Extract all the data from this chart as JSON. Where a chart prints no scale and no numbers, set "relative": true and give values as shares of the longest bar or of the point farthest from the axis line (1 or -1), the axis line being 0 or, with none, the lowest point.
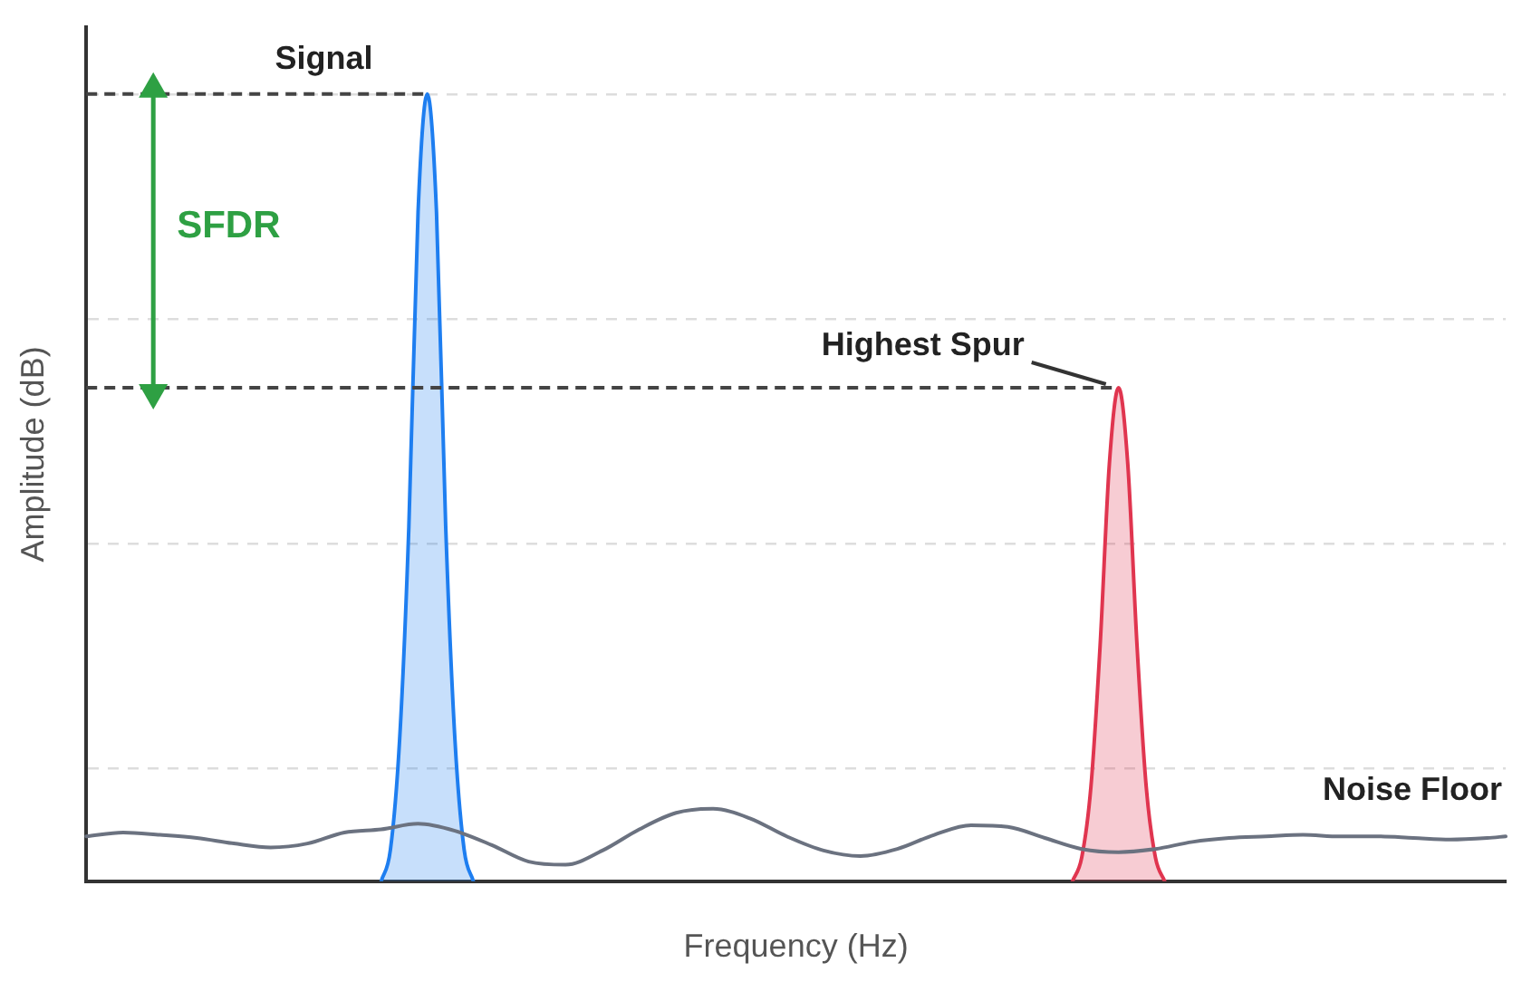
{
  "chart_data": {
    "type": "area",
    "relative": true,
    "xlabel": "Frequency (Hz)",
    "ylabel": "Amplitude (dB)",
    "grid": "y",
    "legend": false,
    "tick_labels": false,
    "categories": [
      null,
      null,
      null,
      null,
      null,
      null,
      null,
      null,
      null,
      null,
      null,
      null,
      null,
      null,
      null,
      null,
      null,
      null,
      null,
      null,
      null,
      null,
      null,
      null,
      null,
      null,
      null,
      null,
      null,
      null,
      null,
      null,
      null,
      null,
      null,
      null,
      null,
      null,
      null,
      null,
      null,
      null,
      null,
      null,
      null,
      null,
      null,
      null,
      null,
      null,
      null,
      null,
      null,
      null,
      null,
      null,
      null,
      null,
      null,
      null,
      null,
      null,
      null,
      null,
      null,
      null,
      null,
      null,
      null,
      null,
      null,
      null,
      null,
      null,
      null,
      null,
      null,
      null,
      null,
      null,
      null,
      null,
      null,
      null,
      null,
      null,
      null,
      null,
      null,
      null,
      null,
      null,
      null,
      null,
      null,
      null,
      null,
      null,
      null,
      null,
      null,
      null,
      null,
      null,
      null,
      null,
      null,
      null,
      null,
      null,
      null,
      null,
      null,
      null,
      null,
      null,
      null,
      null,
      null,
      null,
      null,
      null,
      null,
      null,
      null,
      null,
      null,
      null,
      null,
      null,
      null,
      null,
      null,
      null,
      null,
      null,
      null,
      null,
      null,
      null,
      null,
      null,
      null,
      null,
      null,
      null,
      null,
      null,
      null,
      null,
      null,
      null,
      null,
      null,
      null
    ],
    "series": [
      {
        "name": "Noise Floor",
        "type": "line",
        "color": "#6b7280",
        "values": [
          0.057,
          null,
          null,
          null,
          0.062,
          null,
          null,
          null,
          0.059,
          null,
          null,
          null,
          0.055,
          null,
          null,
          null,
          0.048,
          null,
          null,
          null,
          0.043,
          null,
          null,
          null,
          0.048,
          null,
          null,
          null,
          0.062,
          null,
          null,
          null,
          0.066,
          null,
          null,
          null,
          0.073,
          null,
          null,
          null,
          0.064,
          null,
          null,
          null,
          0.046,
          null,
          null,
          null,
          0.025,
          null,
          null,
          null,
          0.021,
          null,
          null,
          null,
          0.039,
          null,
          null,
          null,
          0.066,
          null,
          null,
          null,
          0.087,
          null,
          null,
          null,
          0.092,
          null,
          null,
          null,
          0.08,
          null,
          null,
          null,
          0.057,
          null,
          null,
          null,
          0.039,
          null,
          null,
          null,
          0.032,
          null,
          null,
          null,
          0.041,
          null,
          null,
          null,
          0.059,
          null,
          null,
          null,
          0.071,
          null,
          null,
          null,
          0.069,
          null,
          null,
          null,
          0.055,
          null,
          null,
          null,
          0.041,
          null,
          null,
          null,
          0.037,
          null,
          null,
          null,
          0.041,
          null,
          null,
          null,
          0.05,
          null,
          null,
          null,
          0.055,
          null,
          null,
          null,
          0.057,
          null,
          null,
          null,
          0.059,
          null,
          null,
          null,
          0.057,
          null,
          null,
          null,
          0.057,
          null,
          null,
          null,
          0.055,
          null,
          null,
          null,
          0.053,
          null,
          null,
          null,
          0.055,
          null,
          0.057
        ]
      },
      {
        "name": "Signal",
        "type": "area",
        "color": "#1e7ef0",
        "values": [
          null,
          null,
          null,
          null,
          null,
          null,
          null,
          null,
          null,
          null,
          null,
          null,
          null,
          null,
          null,
          null,
          null,
          null,
          null,
          null,
          null,
          null,
          null,
          null,
          null,
          null,
          null,
          null,
          null,
          null,
          null,
          null,
          0,
          0.04,
          0.18,
          0.45,
          0.85,
          1,
          0.85,
          0.45,
          0.18,
          0.04,
          0,
          null,
          null,
          null,
          null,
          null,
          null,
          null,
          null,
          null,
          null,
          null,
          null,
          null,
          null,
          null,
          null,
          null,
          null,
          null,
          null,
          null,
          null,
          null,
          null,
          null,
          null,
          null,
          null,
          null,
          null,
          null,
          null,
          null,
          null,
          null,
          null,
          null,
          null,
          null,
          null,
          null,
          null,
          null,
          null,
          null,
          null,
          null,
          null,
          null,
          null,
          null,
          null,
          null,
          null,
          null,
          null,
          null,
          null,
          null,
          null,
          null,
          null,
          null,
          null,
          null,
          null,
          null,
          null,
          null,
          null,
          null,
          null,
          null,
          null,
          null,
          null,
          null,
          null,
          null,
          null,
          null,
          null,
          null,
          null,
          null,
          null,
          null,
          null,
          null,
          null,
          null,
          null,
          null,
          null,
          null,
          null,
          null,
          null,
          null,
          null,
          null,
          null,
          null,
          null,
          null,
          null,
          null,
          null,
          null,
          null,
          null,
          null
        ]
      },
      {
        "name": "Highest Spur",
        "type": "area",
        "color": "#e0354f",
        "values": [
          null,
          null,
          null,
          null,
          null,
          null,
          null,
          null,
          null,
          null,
          null,
          null,
          null,
          null,
          null,
          null,
          null,
          null,
          null,
          null,
          null,
          null,
          null,
          null,
          null,
          null,
          null,
          null,
          null,
          null,
          null,
          null,
          null,
          null,
          null,
          null,
          null,
          null,
          null,
          null,
          null,
          null,
          null,
          null,
          null,
          null,
          null,
          null,
          null,
          null,
          null,
          null,
          null,
          null,
          null,
          null,
          null,
          null,
          null,
          null,
          null,
          null,
          null,
          null,
          null,
          null,
          null,
          null,
          null,
          null,
          null,
          null,
          null,
          null,
          null,
          null,
          null,
          null,
          null,
          null,
          null,
          null,
          null,
          null,
          null,
          null,
          null,
          null,
          null,
          null,
          null,
          null,
          null,
          null,
          null,
          null,
          null,
          null,
          null,
          null,
          null,
          null,
          null,
          null,
          null,
          null,
          null,
          0,
          0.03,
          0.12,
          0.3,
          0.53,
          0.627,
          0.53,
          0.3,
          0.12,
          0.03,
          0,
          null,
          null,
          null,
          null,
          null,
          null,
          null,
          null,
          null,
          null,
          null,
          null,
          null,
          null,
          null,
          null,
          null,
          null,
          null,
          null,
          null,
          null,
          null,
          null,
          null,
          null,
          null,
          null,
          null,
          null,
          null,
          null,
          null,
          null,
          null,
          null,
          null
        ]
      }
    ],
    "ref_lines": [
      {
        "axis": "y",
        "value": 1,
        "color": "#444444",
        "line_style": "dashed"
      },
      {
        "axis": "y",
        "value": 0.627,
        "color": "#444444",
        "line_style": "dashed"
      }
    ],
    "annotations": [
      "SFDR"
    ]
  }
}
